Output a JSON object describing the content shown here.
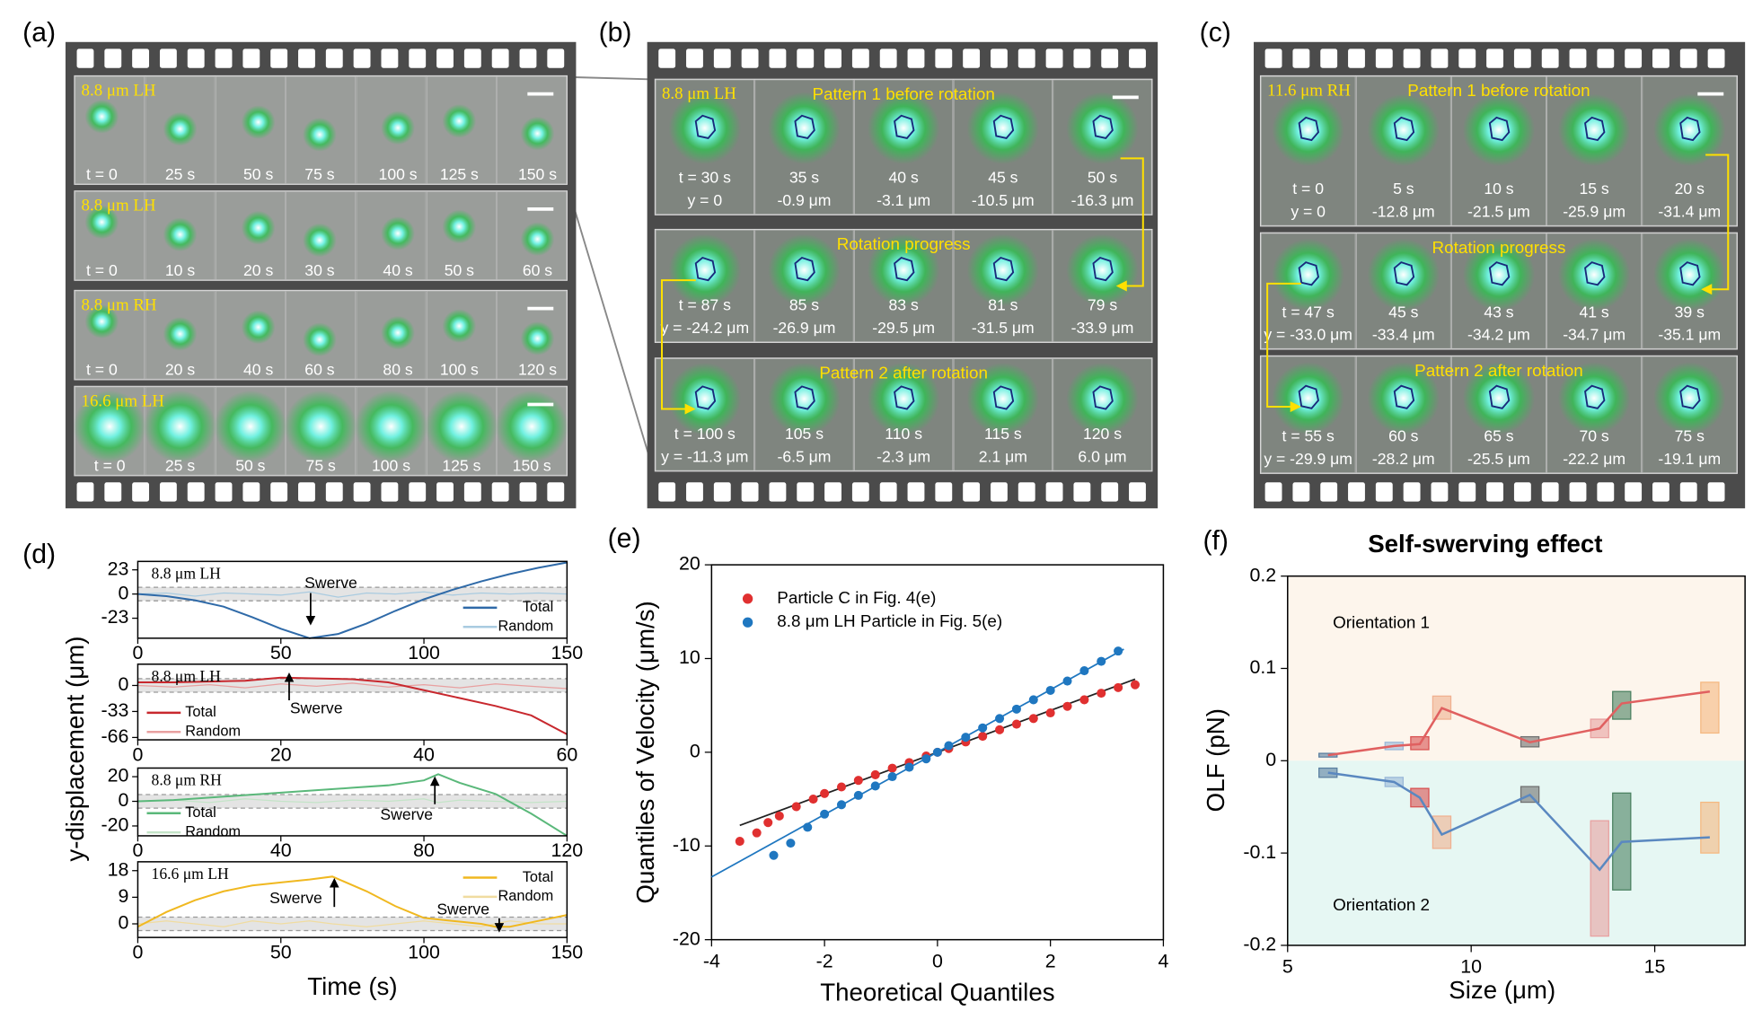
{
  "panel_labels": [
    "(a)",
    "(b)",
    "(c)",
    "(d)",
    "(e)",
    "(f)"
  ],
  "filmstrips": [
    {
      "rows": [
        {
          "title": "8.8 μm LH",
          "times": [
            "t = 0",
            "25 s",
            "50 s",
            "75 s",
            "100 s",
            "125 s",
            "150 s"
          ]
        },
        {
          "title": "8.8 μm LH",
          "times": [
            "t = 0",
            "10 s",
            "20 s",
            "30 s",
            "40 s",
            "50 s",
            "60 s"
          ]
        },
        {
          "title": "8.8 μm RH",
          "times": [
            "t = 0",
            "20 s",
            "40 s",
            "60 s",
            "80 s",
            "100 s",
            "120 s"
          ]
        },
        {
          "title": "16.6 μm LH",
          "times": [
            "t = 0",
            "25 s",
            "50 s",
            "75 s",
            "100 s",
            "125 s",
            "150 s"
          ]
        }
      ]
    },
    {
      "rows": [
        {
          "title": "8.8 μm LH",
          "caption": "Pattern 1 before rotation",
          "times": [
            "t = 30 s",
            "35 s",
            "40 s",
            "45 s",
            "50 s"
          ],
          "y": [
            "y = 0",
            "-0.9 μm",
            "-3.1 μm",
            "-10.5 μm",
            "-16.3 μm"
          ]
        },
        {
          "caption": "Rotation progress",
          "times": [
            "t = 87 s",
            "85 s",
            "83 s",
            "81 s",
            "79 s"
          ],
          "y": [
            "y = -24.2 μm",
            "-26.9 μm",
            "-29.5 μm",
            "-31.5 μm",
            "-33.9 μm"
          ]
        },
        {
          "caption": "Pattern 2 after rotation",
          "times": [
            "t = 100 s",
            "105 s",
            "110 s",
            "115 s",
            "120 s"
          ],
          "y": [
            "y = -11.3 μm",
            "-6.5 μm",
            "-2.3 μm",
            "2.1 μm",
            "6.0 μm"
          ]
        }
      ]
    },
    {
      "rows": [
        {
          "title": "11.6 μm RH",
          "caption": "Pattern 1 before rotation",
          "times": [
            "t = 0",
            "5 s",
            "10 s",
            "15 s",
            "20 s"
          ],
          "y": [
            "y = 0",
            "-12.8 μm",
            "-21.5 μm",
            "-25.9 μm",
            "-31.4 μm"
          ]
        },
        {
          "caption": "Rotation progress",
          "times": [
            "t = 47 s",
            "45 s",
            "43 s",
            "41 s",
            "39 s"
          ],
          "y": [
            "y = -33.0 μm",
            "-33.4 μm",
            "-34.2 μm",
            "-34.7 μm",
            "-35.1 μm"
          ]
        },
        {
          "caption": "Pattern 2 after rotation",
          "times": [
            "t = 55 s",
            "60 s",
            "65 s",
            "70 s",
            "75 s"
          ],
          "y": [
            "y = -29.9 μm",
            "-28.2 μm",
            "-25.5 μm",
            "-22.2 μm",
            "-19.1 μm"
          ]
        }
      ]
    }
  ],
  "chart_data": [
    {
      "type": "line",
      "title": "8.8 μm LH",
      "ylabel": "y-displacement (μm)",
      "x": [
        0,
        10,
        20,
        30,
        40,
        50,
        60,
        70,
        80,
        90,
        100,
        110,
        120,
        130,
        140,
        150
      ],
      "series": [
        {
          "name": "Total",
          "color": "#2f6aa8",
          "values": [
            0,
            -2,
            -6,
            -12,
            -22,
            -33,
            -42,
            -38,
            -28,
            -16,
            -5,
            4,
            12,
            19,
            25,
            30
          ]
        },
        {
          "name": "Random",
          "color": "#a9cbe0",
          "values": [
            0,
            1,
            -2,
            1,
            0,
            -1,
            2,
            -3,
            1,
            0,
            2,
            -1,
            1,
            0,
            1,
            0
          ]
        }
      ],
      "xlim": [
        0,
        150
      ],
      "ylim": [
        -42,
        31
      ],
      "xticks": [
        0,
        50,
        100,
        150
      ],
      "yticks": [
        23,
        0,
        -23
      ],
      "annotations": [
        "Swerve"
      ]
    },
    {
      "type": "line",
      "title": "8.8 μm LH",
      "x": [
        0,
        5,
        10,
        15,
        20,
        25,
        30,
        35,
        40,
        45,
        50,
        55,
        60
      ],
      "series": [
        {
          "name": "Total",
          "color": "#c8282e",
          "values": [
            4,
            4,
            5,
            6,
            10,
            9,
            8,
            4,
            -6,
            -16,
            -26,
            -38,
            -62
          ]
        },
        {
          "name": "Random",
          "color": "#e8a0a0",
          "values": [
            0,
            -2,
            1,
            -3,
            2,
            -1,
            3,
            -2,
            1,
            -3,
            2,
            -1,
            -4
          ]
        }
      ],
      "xlim": [
        0,
        60
      ],
      "ylim": [
        -69,
        27
      ],
      "xticks": [
        0,
        20,
        40,
        60
      ],
      "yticks": [
        0,
        -33,
        -66
      ],
      "annotations": [
        "Swerve"
      ]
    },
    {
      "type": "line",
      "title": "8.8 μm RH",
      "x": [
        0,
        10,
        20,
        30,
        40,
        50,
        60,
        70,
        80,
        84,
        90,
        100,
        110,
        120
      ],
      "series": [
        {
          "name": "Total",
          "color": "#5ab87a",
          "values": [
            0,
            1,
            3,
            5,
            7,
            9,
            11,
            13,
            17,
            22,
            15,
            6,
            -10,
            -28
          ]
        },
        {
          "name": "Random",
          "color": "#c4e4c8",
          "values": [
            0,
            1,
            -1,
            2,
            0,
            -1,
            1,
            0,
            2,
            -1,
            1,
            0,
            -1,
            0
          ]
        }
      ],
      "xlim": [
        0,
        120
      ],
      "ylim": [
        -28,
        27
      ],
      "xticks": [
        0,
        40,
        80,
        120
      ],
      "yticks": [
        20,
        0,
        -20
      ],
      "annotations": [
        "Swerve"
      ]
    },
    {
      "type": "line",
      "title": "16.6 μm LH",
      "xlabel": "Time (s)",
      "x": [
        0,
        10,
        20,
        30,
        40,
        50,
        60,
        68,
        80,
        90,
        100,
        110,
        120,
        125,
        130,
        140,
        150
      ],
      "series": [
        {
          "name": "Total",
          "color": "#f0b820",
          "values": [
            -1,
            4,
            8,
            11,
            13,
            14,
            15,
            16,
            11,
            6,
            2,
            1,
            0,
            -1,
            -1,
            1,
            3
          ]
        },
        {
          "name": "Random",
          "color": "#f0dca0",
          "values": [
            0,
            1,
            0,
            -1,
            1,
            0,
            1,
            0,
            -1,
            0,
            1,
            0,
            -1,
            0,
            1,
            0,
            0
          ]
        }
      ],
      "xlim": [
        0,
        150
      ],
      "ylim": [
        -4.6,
        21
      ],
      "xticks": [
        0,
        50,
        100,
        150
      ],
      "yticks": [
        18,
        9,
        0
      ],
      "annotations": [
        "Swerve",
        "Swerve"
      ]
    },
    {
      "type": "scatter",
      "xlabel": "Theoretical Quantiles",
      "ylabel": "Quantiles of Velocity (μm/s)",
      "series": [
        {
          "name": "Particle C in Fig. 4(e)",
          "color": "#e03030",
          "x": [
            -3.5,
            -3.2,
            -3.0,
            -2.8,
            -2.5,
            -2.2,
            -2.0,
            -1.7,
            -1.4,
            -1.1,
            -0.8,
            -0.5,
            -0.2,
            0,
            0.2,
            0.5,
            0.8,
            1.1,
            1.4,
            1.7,
            2.0,
            2.3,
            2.6,
            2.9,
            3.2,
            3.5
          ],
          "values": [
            -9.5,
            -8.6,
            -7.5,
            -6.8,
            -5.8,
            -5.0,
            -4.4,
            -3.7,
            -3.0,
            -2.4,
            -1.7,
            -1.1,
            -0.4,
            0,
            0.4,
            1.1,
            1.7,
            2.4,
            3.0,
            3.6,
            4.2,
            4.9,
            5.6,
            6.3,
            6.9,
            7.2
          ],
          "fit": {
            "x": [
              -3.5,
              3.5
            ],
            "values": [
              -7.8,
              7.8
            ]
          }
        },
        {
          "name": "8.8 μm LH Particle in Fig. 5(e)",
          "color": "#1f77c0",
          "x": [
            -2.9,
            -2.6,
            -2.3,
            -2.0,
            -1.7,
            -1.4,
            -1.1,
            -0.8,
            -0.5,
            -0.2,
            0,
            0.2,
            0.5,
            0.8,
            1.1,
            1.4,
            1.7,
            2.0,
            2.3,
            2.6,
            2.9,
            3.2
          ],
          "values": [
            -11,
            -9.7,
            -8.0,
            -6.6,
            -5.6,
            -4.6,
            -3.6,
            -2.6,
            -1.6,
            -0.7,
            0,
            0.7,
            1.6,
            2.6,
            3.6,
            4.6,
            5.6,
            6.6,
            7.6,
            8.7,
            9.7,
            10.8
          ],
          "fit": {
            "x": [
              -4,
              3.3
            ],
            "values": [
              -13.3,
              11
            ]
          }
        }
      ],
      "xlim": [
        -4,
        4
      ],
      "ylim": [
        -20,
        20
      ],
      "xticks": [
        -4,
        -2,
        0,
        2,
        4
      ],
      "yticks": [
        -20,
        -10,
        0,
        10,
        20
      ]
    },
    {
      "type": "box",
      "title": "Self-swerving effect",
      "xlabel": "Size (μm)",
      "ylabel": "OLF (pN)",
      "annotations": [
        "Orientation 1",
        "Orientation 2"
      ],
      "x": [
        6.1,
        7.9,
        8.6,
        9.2,
        11.6,
        13.5,
        14.1,
        16.5
      ],
      "box_colors": [
        "#5a7fa0",
        "#9ab8d8",
        "#d85050",
        "#f0b090",
        "#707070",
        "#e8a0a0",
        "#4a8060",
        "#f5b880"
      ],
      "series": [
        {
          "color": "#e06060",
          "values": [
            0.006,
            0.016,
            0.018,
            0.057,
            0.02,
            0.035,
            0.062,
            0.075
          ],
          "box_low": [
            0.004,
            0.012,
            0.012,
            0.045,
            0.015,
            0.025,
            0.045,
            0.03
          ],
          "box_high": [
            0.008,
            0.02,
            0.026,
            0.07,
            0.026,
            0.045,
            0.075,
            0.085
          ]
        },
        {
          "color": "#5a88c0",
          "values": [
            -0.013,
            -0.023,
            -0.04,
            -0.08,
            -0.037,
            -0.118,
            -0.088,
            -0.083
          ],
          "box_low": [
            -0.018,
            -0.028,
            -0.05,
            -0.095,
            -0.045,
            -0.19,
            -0.14,
            -0.1
          ],
          "box_high": [
            -0.008,
            -0.018,
            -0.03,
            -0.06,
            -0.028,
            -0.065,
            -0.035,
            -0.045
          ]
        }
      ],
      "xlim": [
        5,
        17.46
      ],
      "ylim": [
        -0.2,
        0.2
      ],
      "xticks": [
        5,
        10,
        15
      ],
      "yticks": [
        -0.2,
        -0.1,
        0,
        0.1,
        0.2
      ]
    }
  ]
}
